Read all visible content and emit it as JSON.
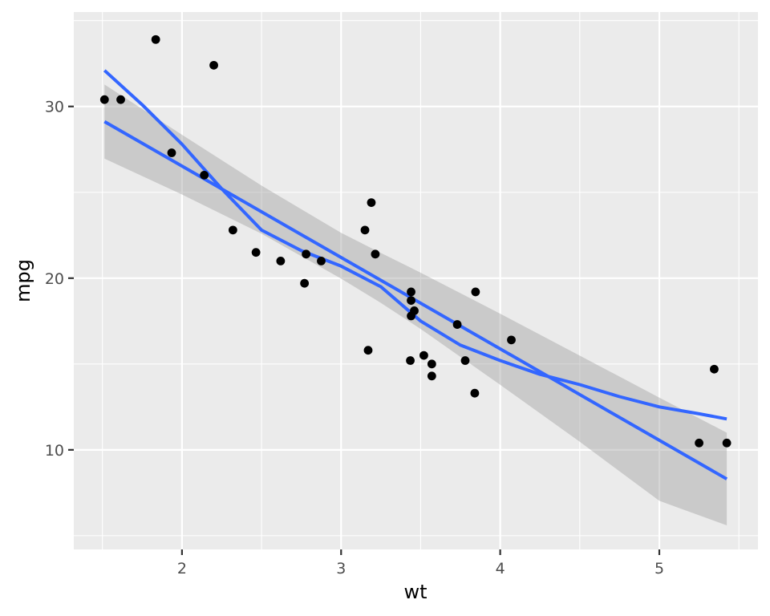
{
  "chart_data": {
    "type": "scatter",
    "title": "",
    "xlabel": "wt",
    "ylabel": "mpg",
    "xlim": [
      1.32,
      5.62
    ],
    "ylim": [
      4.2,
      35.5
    ],
    "x_ticks": [
      2,
      3,
      4,
      5
    ],
    "x_minor_ticks": [
      1.5,
      2.5,
      3.5,
      4.5,
      5.5
    ],
    "y_ticks": [
      10,
      20,
      30
    ],
    "y_minor_ticks": [
      5,
      15,
      25,
      35
    ],
    "grid": true,
    "legend": "none",
    "colors": {
      "panel": "#ebebeb",
      "grid": "#ffffff",
      "points": "#000000",
      "line": "#3366ff",
      "band": "#999999"
    },
    "points": {
      "x": [
        2.62,
        2.875,
        2.32,
        3.215,
        3.44,
        3.46,
        3.57,
        3.19,
        3.15,
        3.44,
        3.44,
        4.07,
        3.73,
        3.78,
        5.25,
        5.424,
        5.345,
        2.2,
        1.615,
        1.835,
        2.465,
        3.52,
        3.435,
        3.84,
        3.845,
        1.935,
        2.14,
        1.513,
        3.17,
        2.77,
        3.57,
        2.78
      ],
      "y": [
        21.0,
        21.0,
        22.8,
        21.4,
        18.7,
        18.1,
        14.3,
        24.4,
        22.8,
        19.2,
        17.8,
        16.4,
        17.3,
        15.2,
        10.4,
        10.4,
        14.7,
        32.4,
        30.4,
        33.9,
        21.5,
        15.5,
        15.2,
        13.3,
        19.2,
        27.3,
        26.0,
        30.4,
        15.8,
        19.7,
        15.0,
        21.4
      ]
    },
    "series": [
      {
        "type": "line",
        "x": [
          1.513,
          5.424
        ],
        "y": [
          29.12,
          8.3
        ]
      },
      {
        "type": "ribbon",
        "x": [
          1.513,
          2.0,
          2.5,
          3.0,
          3.25,
          3.5,
          4.0,
          4.5,
          5.0,
          5.424
        ],
        "y_low": [
          26.96,
          24.87,
          22.59,
          19.97,
          18.56,
          17.04,
          13.79,
          10.47,
          7.03,
          5.6
        ],
        "y_high": [
          31.28,
          28.35,
          25.39,
          22.64,
          21.47,
          20.32,
          17.93,
          15.49,
          13.04,
          11.0
        ]
      },
      {
        "type": "line",
        "x": [
          1.513,
          1.75,
          2.0,
          2.25,
          2.5,
          2.75,
          3.0,
          3.25,
          3.5,
          3.75,
          4.0,
          4.25,
          4.5,
          4.75,
          5.0,
          5.25,
          5.424
        ],
        "y": [
          32.1,
          30.1,
          27.8,
          25.2,
          22.8,
          21.6,
          20.7,
          19.5,
          17.5,
          16.1,
          15.2,
          14.4,
          13.8,
          13.1,
          12.5,
          12.1,
          11.8
        ]
      }
    ]
  }
}
